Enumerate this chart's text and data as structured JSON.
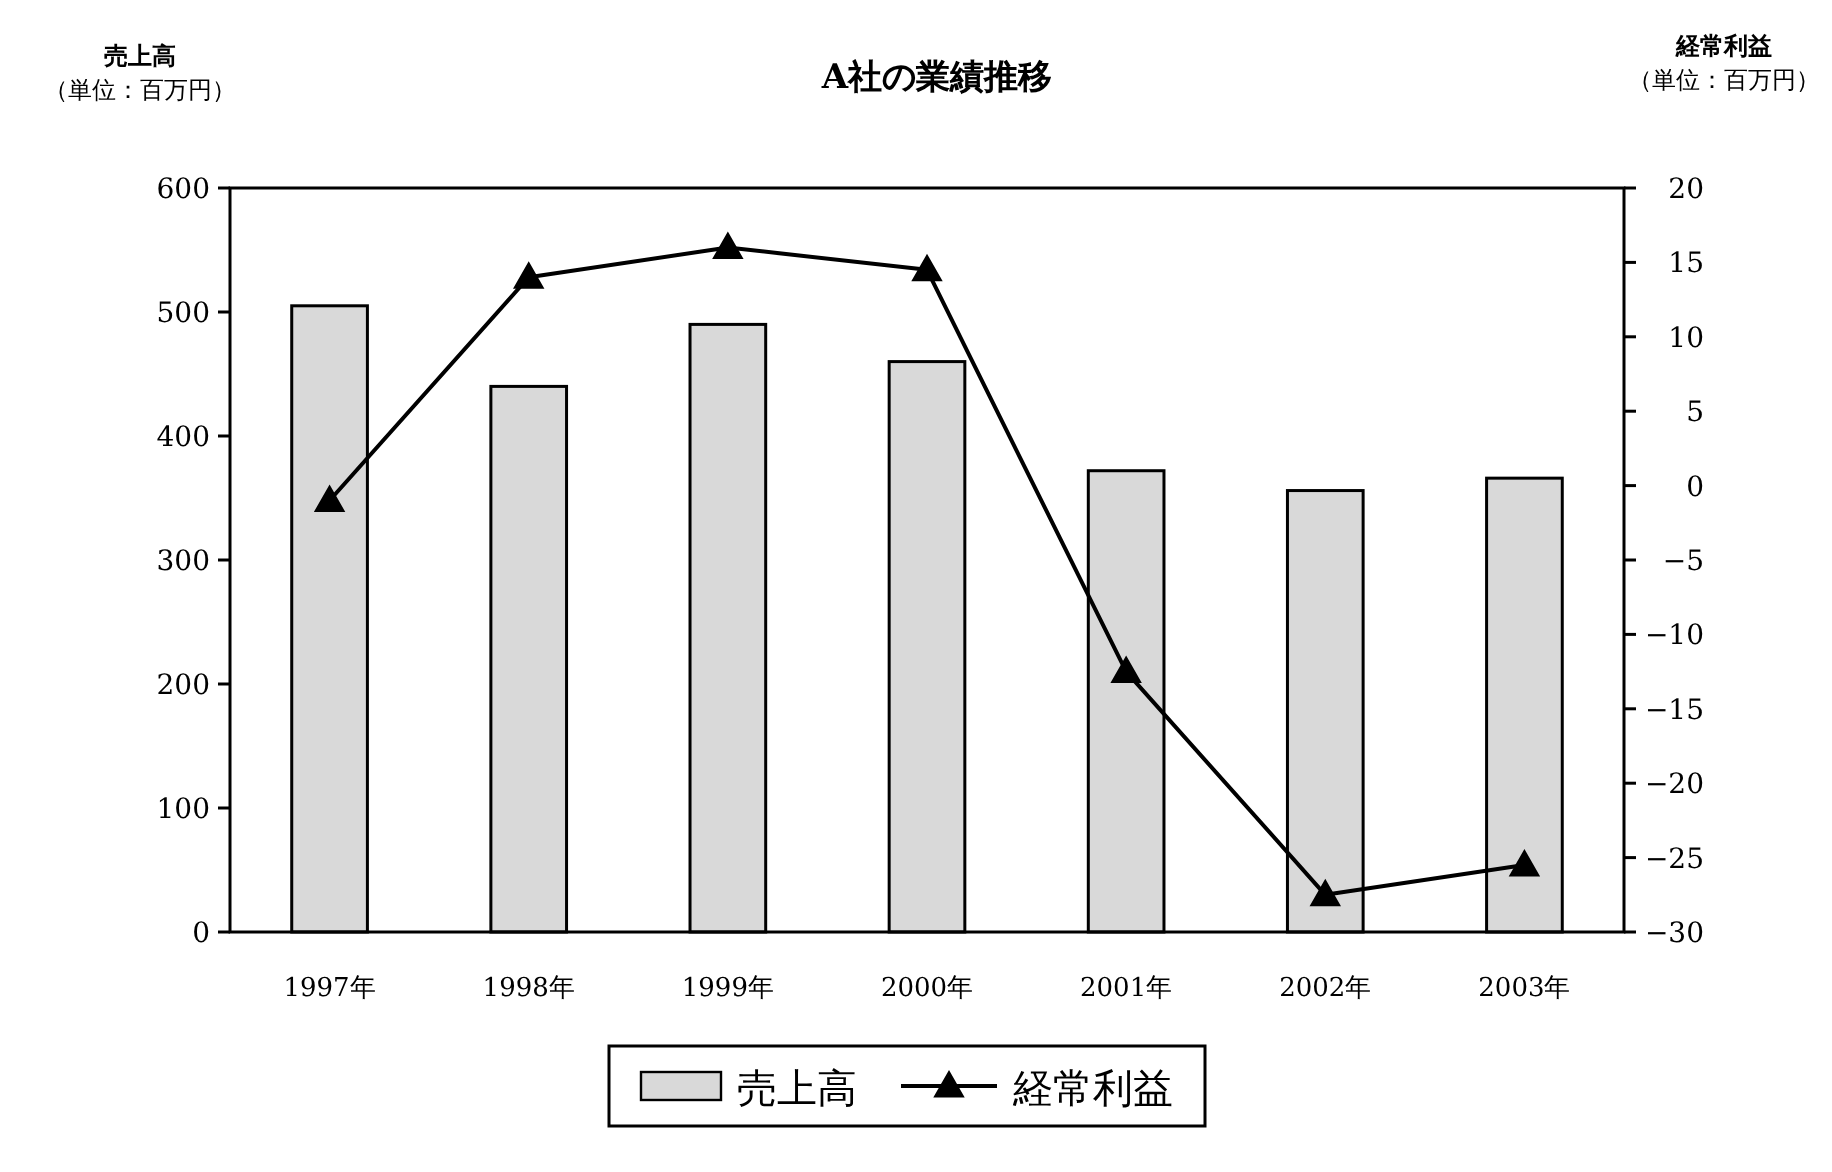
{
  "chart_data": {
    "type": "bar",
    "title": "A社の業績推移",
    "ylabel": "売上高",
    "y2label": "経常利益",
    "annotations": [
      "（単位：百万円）",
      "（単位：百万円）"
    ],
    "categories": [
      "1997年",
      "1998年",
      "1999年",
      "2000年",
      "2001年",
      "2002年",
      "2003年"
    ],
    "series": [
      {
        "name": "売上高",
        "color": "#d9d9d9",
        "values": [
          505,
          440,
          490,
          460,
          372,
          356,
          366
        ]
      },
      {
        "name": "経常利益",
        "type": "line",
        "axis": "y2",
        "color": "#000000",
        "values": [
          -1,
          14,
          16,
          14.5,
          -12.5,
          -27.5,
          -25.5
        ]
      }
    ],
    "ylim": [
      0,
      600
    ],
    "yticks": [
      0,
      100,
      200,
      300,
      400,
      500,
      600
    ],
    "y2lim": [
      -30,
      20
    ],
    "y2ticks": [
      {
        "value": -30,
        "label": "−30"
      },
      {
        "value": -25,
        "label": "−25"
      },
      {
        "value": -20,
        "label": "−20"
      },
      {
        "value": -15,
        "label": "−15"
      },
      {
        "value": -10,
        "label": "−10"
      },
      {
        "value": -5,
        "label": "−5"
      },
      0,
      5,
      10,
      15,
      20
    ],
    "marker": "triangle",
    "legend": "bottom"
  }
}
